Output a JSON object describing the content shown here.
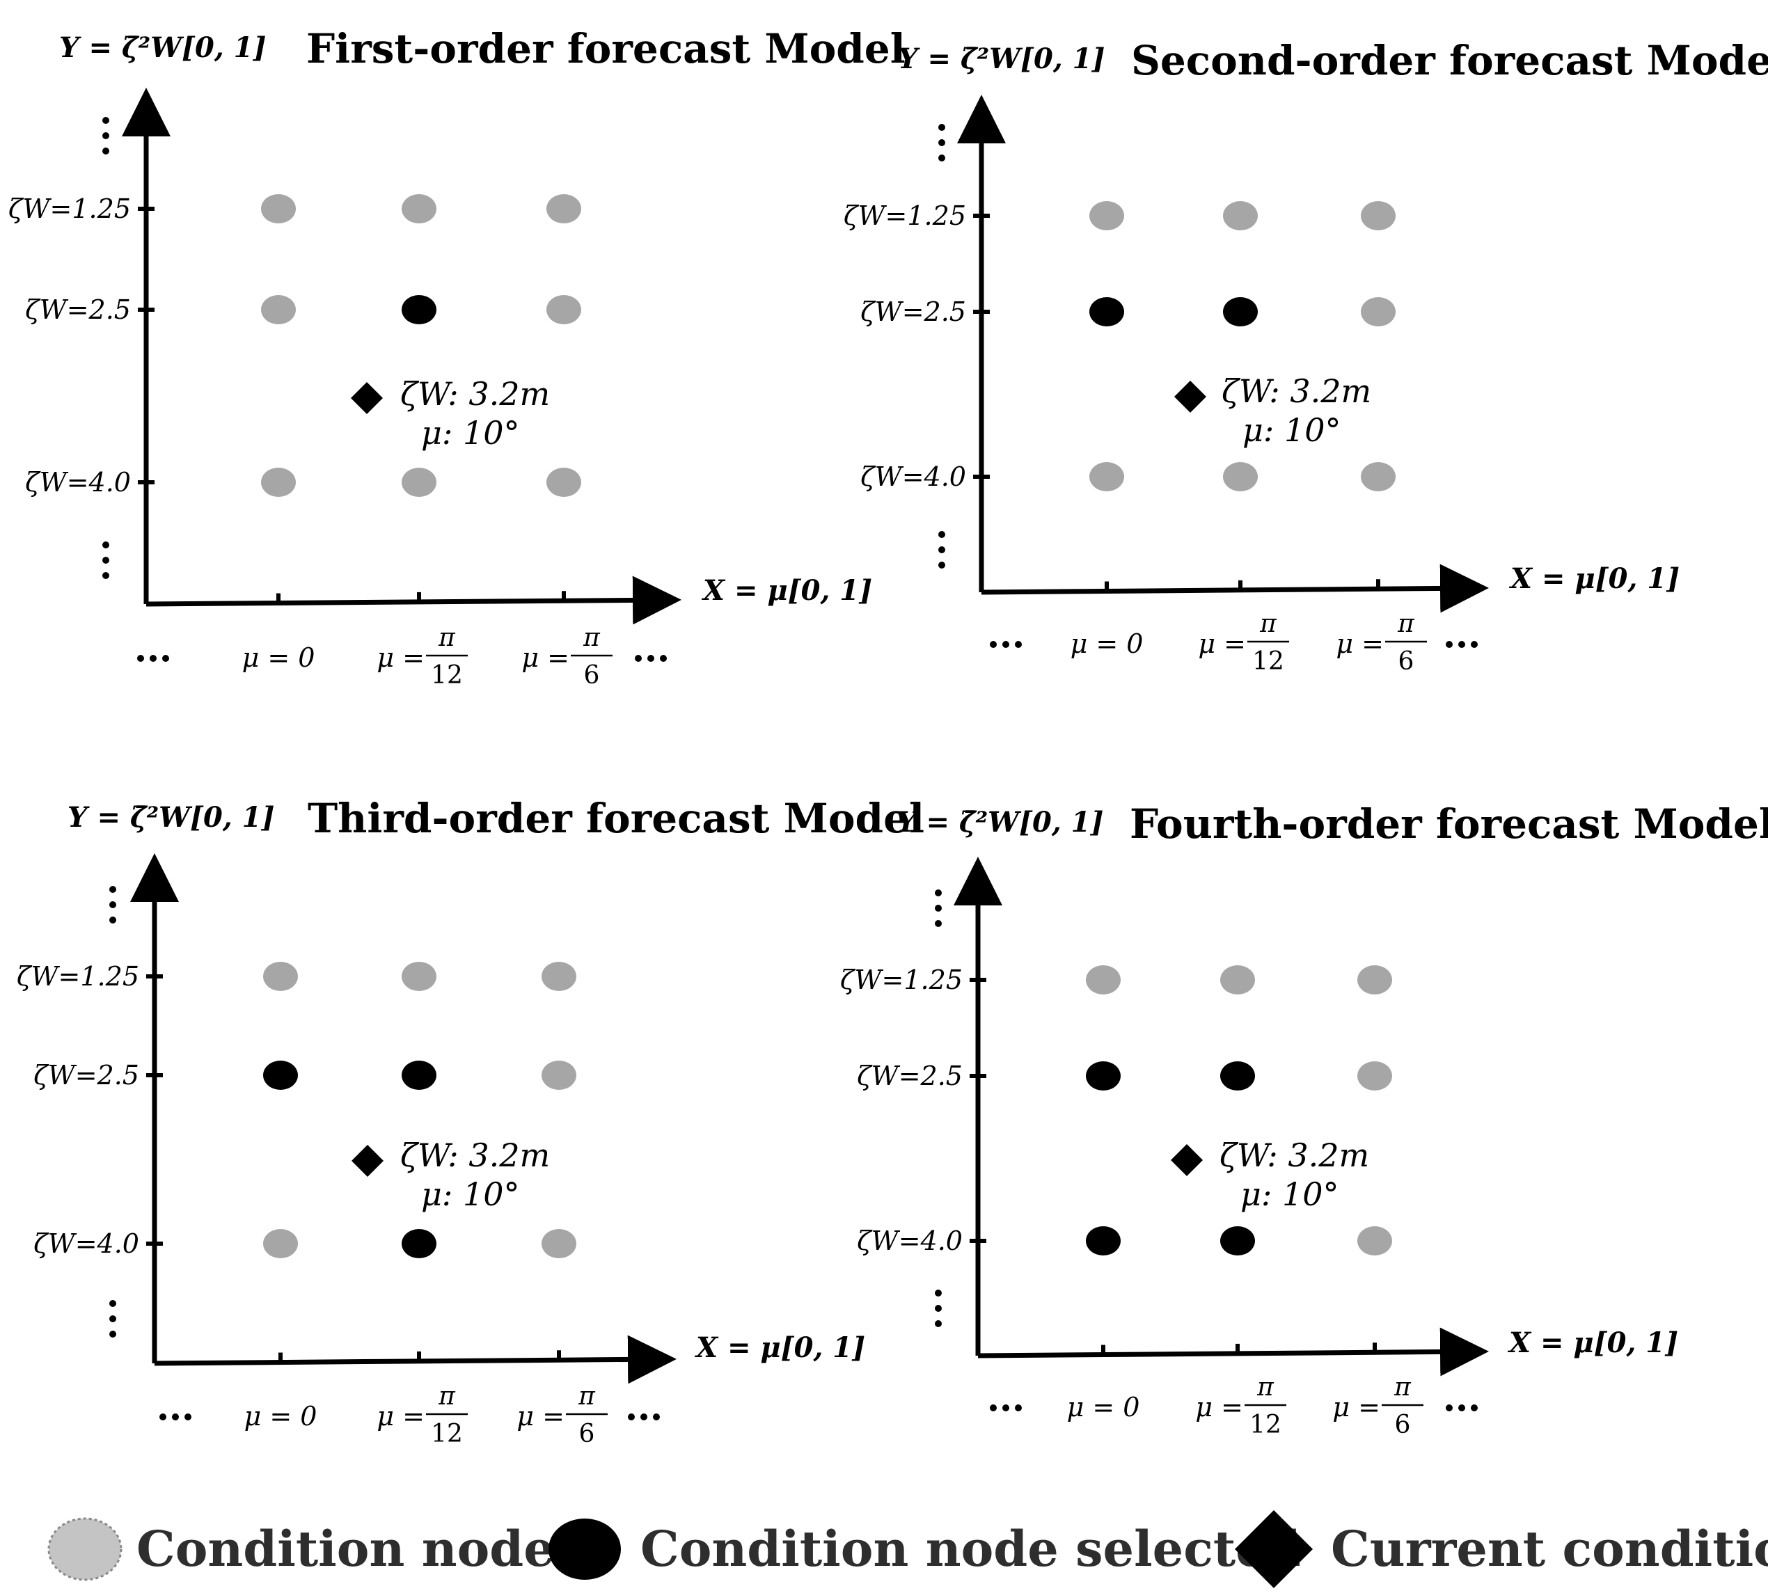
{
  "panels": [
    {
      "title": "First-order forecast Model",
      "y_axis_label": "Y = ζ̄²W[0, 1]",
      "x_axis_label": "X = μ[0, 1]",
      "y_ticks": [
        "ζW=1.25",
        "ζW=2.5",
        "ζW=4.0"
      ],
      "x_ticks": [
        {
          "lhs": "μ = ",
          "num": "0",
          "den": ""
        },
        {
          "lhs": "μ = ",
          "num": "π",
          "den": "12"
        },
        {
          "lhs": "μ = ",
          "num": "π",
          "den": "6"
        }
      ],
      "selected": [
        [
          1,
          1
        ]
      ],
      "current": {
        "zeta": "ζW: 3.2m",
        "mu": "μ: 10°"
      }
    },
    {
      "title": "Second-order forecast Model",
      "y_axis_label": "Y = ζ̄²W[0, 1]",
      "x_axis_label": "X = μ[0, 1]",
      "y_ticks": [
        "ζW=1.25",
        "ζW=2.5",
        "ζW=4.0"
      ],
      "x_ticks": [
        {
          "lhs": "μ = ",
          "num": "0",
          "den": ""
        },
        {
          "lhs": "μ = ",
          "num": "π",
          "den": "12"
        },
        {
          "lhs": "μ = ",
          "num": "π",
          "den": "6"
        }
      ],
      "selected": [
        [
          1,
          0
        ],
        [
          1,
          1
        ]
      ],
      "current": {
        "zeta": "ζW: 3.2m",
        "mu": "μ: 10°"
      }
    },
    {
      "title": "Third-order forecast Model",
      "y_axis_label": "Y = ζ̄²W[0, 1]",
      "x_axis_label": "X = μ[0, 1]",
      "y_ticks": [
        "ζW=1.25",
        "ζW=2.5",
        "ζW=4.0"
      ],
      "x_ticks": [
        {
          "lhs": "μ = ",
          "num": "0",
          "den": ""
        },
        {
          "lhs": "μ = ",
          "num": "π",
          "den": "12"
        },
        {
          "lhs": "μ = ",
          "num": "π",
          "den": "6"
        }
      ],
      "selected": [
        [
          1,
          0
        ],
        [
          1,
          1
        ],
        [
          2,
          1
        ]
      ],
      "current": {
        "zeta": "ζW: 3.2m",
        "mu": "μ: 10°"
      }
    },
    {
      "title": "Fourth-order forecast Model",
      "y_axis_label": "Y = ζ̄²W[0, 1]",
      "x_axis_label": "X = μ[0, 1]",
      "y_ticks": [
        "ζW=1.25",
        "ζW=2.5",
        "ζW=4.0"
      ],
      "x_ticks": [
        {
          "lhs": "μ = ",
          "num": "0",
          "den": ""
        },
        {
          "lhs": "μ = ",
          "num": "π",
          "den": "12"
        },
        {
          "lhs": "μ = ",
          "num": "π",
          "den": "6"
        }
      ],
      "selected": [
        [
          1,
          0
        ],
        [
          1,
          1
        ],
        [
          2,
          0
        ],
        [
          2,
          1
        ]
      ],
      "current": {
        "zeta": "ζW: 3.2m",
        "mu": "μ: 10°"
      }
    }
  ],
  "legend": {
    "condition_node": "Condition node",
    "condition_node_selected": "Condition node selected",
    "current_condition": "Current condition"
  },
  "colors": {
    "node": "#a6a6a6",
    "selected": "#000000",
    "axis": "#000000",
    "legend_text": "#2e2e2e"
  }
}
